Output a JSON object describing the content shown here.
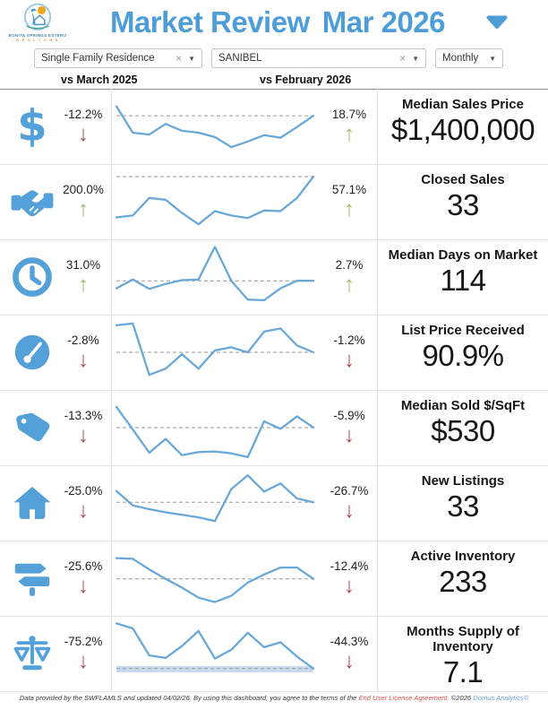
{
  "header": {
    "title": "Market Review",
    "period": "Mar 2026",
    "logo_line1": "BONITA SPRINGS ESTERO",
    "logo_line2": "· R E A L T O R S ·"
  },
  "filters": {
    "property_type": {
      "value": "Single Family Residence",
      "clear_icon": "×",
      "caret_icon": "▼"
    },
    "city": {
      "value": "SANIBEL",
      "clear_icon": "×",
      "caret_icon": "▼"
    },
    "frequency": {
      "value": "Monthly",
      "caret_icon": "▼"
    }
  },
  "columns": {
    "left_label": "vs March 2025",
    "right_label": "vs February 2026"
  },
  "icons": {
    "down_arrow": "↓",
    "up_arrow": "↑"
  },
  "colors": {
    "accent": "#4d9dd8",
    "spark": "#69a8d8",
    "band": "#c9daf0",
    "up": "#9cba6c",
    "down": "#a9494f",
    "ref_line": "#9a9a9a"
  },
  "rows": [
    {
      "metric": "Median Sales Price",
      "value": "$1,400,000",
      "icon": "dollar",
      "yoy": {
        "value": "-12.2%",
        "dir": "down"
      },
      "mom": {
        "value": "18.7%",
        "dir": "up"
      },
      "spark": {
        "type": "line",
        "ref": 33,
        "values": [
          18,
          60,
          63,
          46,
          57,
          60,
          67,
          83,
          74,
          64,
          68,
          51,
          33
        ]
      }
    },
    {
      "metric": "Closed Sales",
      "value": "33",
      "icon": "handshake",
      "yoy": {
        "value": "200.0%",
        "dir": "up"
      },
      "mom": {
        "value": "57.1%",
        "dir": "up"
      },
      "spark": {
        "type": "line",
        "ref": 10,
        "values": [
          75,
          72,
          44,
          47,
          68,
          86,
          65,
          72,
          76,
          64,
          65,
          44,
          10
        ]
      }
    },
    {
      "metric": "Median Days on Market",
      "value": "114",
      "icon": "clock",
      "yoy": {
        "value": "31.0%",
        "dir": "up"
      },
      "mom": {
        "value": "2.7%",
        "dir": "up"
      },
      "spark": {
        "type": "line",
        "ref": 56,
        "values": [
          68,
          54,
          69,
          61,
          55,
          54,
          2,
          56,
          86,
          87,
          68,
          56,
          56
        ]
      }
    },
    {
      "metric": "List Price Received",
      "value": "90.9%",
      "icon": "gauge",
      "yoy": {
        "value": "-2.8%",
        "dir": "down"
      },
      "mom": {
        "value": "-1.2%",
        "dir": "down"
      },
      "spark": {
        "type": "line",
        "ref": 50,
        "values": [
          7,
          4,
          86,
          76,
          53,
          76,
          47,
          42,
          50,
          17,
          12,
          39,
          50
        ]
      }
    },
    {
      "metric": "Median Sold $/SqFt",
      "value": "$530",
      "icon": "tag",
      "yoy": {
        "value": "-13.3%",
        "dir": "down"
      },
      "mom": {
        "value": "-5.9%",
        "dir": "down"
      },
      "spark": {
        "type": "line",
        "ref": 50,
        "values": [
          17,
          53,
          90,
          68,
          94,
          89,
          88,
          91,
          97,
          40,
          52,
          32,
          50
        ]
      }
    },
    {
      "metric": "New Listings",
      "value": "33",
      "icon": "house",
      "yoy": {
        "value": "-25.0%",
        "dir": "down"
      },
      "mom": {
        "value": "-26.7%",
        "dir": "down"
      },
      "spark": {
        "type": "line",
        "ref": 49,
        "values": [
          31,
          54,
          60,
          65,
          69,
          73,
          79,
          28,
          6,
          32,
          19,
          43,
          49
        ]
      }
    },
    {
      "metric": "Active Inventory",
      "value": "233",
      "icon": "signpost",
      "yoy": {
        "value": "-25.6%",
        "dir": "down"
      },
      "mom": {
        "value": "-12.4%",
        "dir": "down"
      },
      "spark": {
        "type": "line",
        "ref": 51,
        "values": [
          18,
          19,
          36,
          51,
          65,
          81,
          88,
          78,
          57,
          44,
          33,
          33,
          51
        ]
      }
    },
    {
      "metric": "Months Supply of Inventory",
      "value": "7.1",
      "icon": "scales",
      "yoy": {
        "value": "-75.2%",
        "dir": "down"
      },
      "mom": {
        "value": "-44.3%",
        "dir": "down"
      },
      "spark": {
        "type": "line",
        "ref": 74,
        "band": [
          70,
          80
        ],
        "values": [
          2,
          10,
          53,
          57,
          38,
          14,
          58,
          44,
          17,
          40,
          32,
          55,
          74
        ]
      }
    }
  ],
  "footer": {
    "text1": "Data provided by the SWFLAMLS and updated 04/02/26.  By using this dashboard, you agree to the terms of the ",
    "eula": "End User License Agreement.",
    "text2": "  ©2026 ",
    "brand": "Domus Analytics®"
  }
}
